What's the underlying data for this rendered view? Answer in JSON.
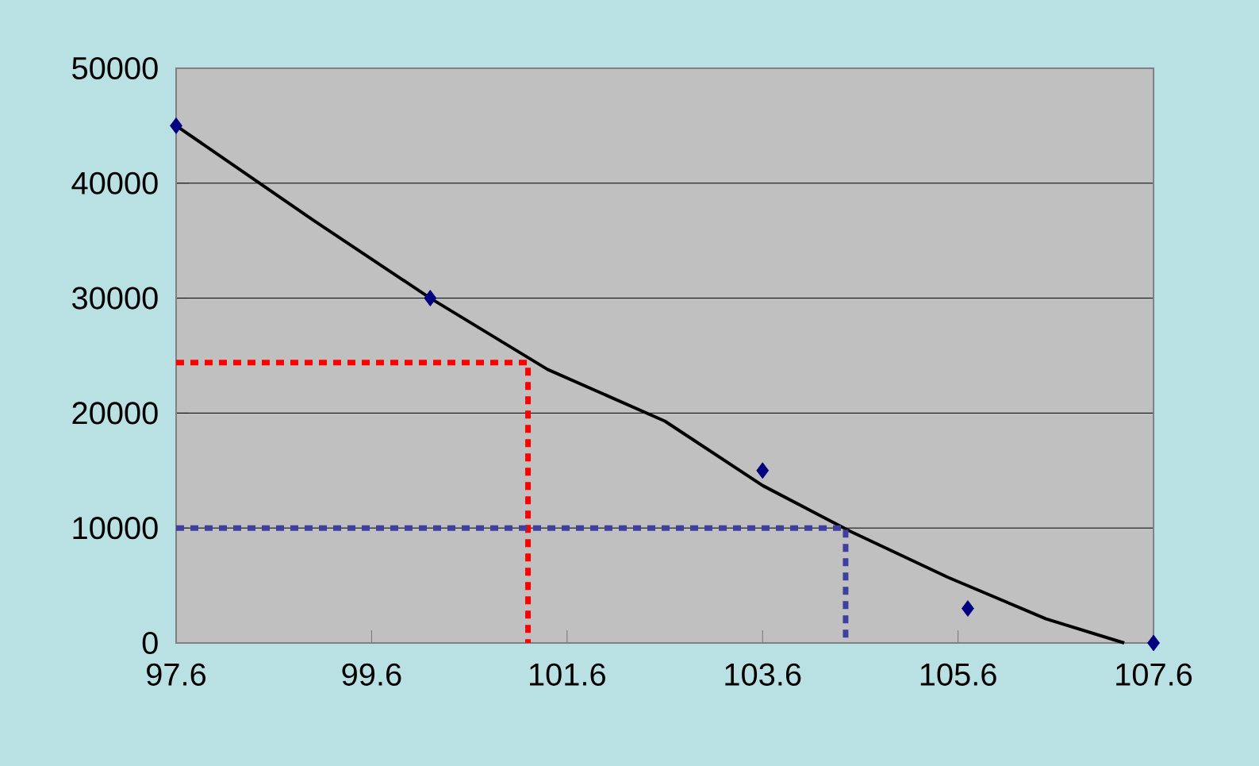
{
  "chart_data": {
    "type": "scatter",
    "xlim": [
      97.6,
      107.6
    ],
    "xticks": [
      97.6,
      99.6,
      101.6,
      103.6,
      105.6,
      107.6
    ],
    "ylim": [
      0,
      50000
    ],
    "yticks": [
      0,
      10000,
      20000,
      30000,
      40000,
      50000
    ],
    "grid": "y",
    "series": [
      {
        "type": "line",
        "color": "#000000",
        "line_style": "solid",
        "marker": "none",
        "x": [
          97.6,
          99.0,
          100.2,
          101.4,
          102.6,
          103.6,
          104.5,
          105.5,
          106.5,
          107.3
        ],
        "values": [
          45000,
          36800,
          30000,
          23800,
          19300,
          13700,
          9700,
          5700,
          2100,
          0
        ]
      },
      {
        "type": "scatter",
        "color": "#000080",
        "marker": "diamond",
        "x": [
          97.6,
          100.2,
          103.6,
          105.7,
          107.6
        ],
        "values": [
          45000,
          30000,
          15000,
          3000,
          0
        ]
      },
      {
        "type": "line",
        "color": "#ff0000",
        "line_style": "dotted",
        "marker": "none",
        "x": [
          97.6,
          101.2,
          101.2
        ],
        "values": [
          24400,
          24400,
          0
        ]
      },
      {
        "type": "line",
        "color": "#3f3f9f",
        "line_style": "dotted",
        "marker": "none",
        "x": [
          97.6,
          104.45,
          104.45
        ],
        "values": [
          10000,
          10000,
          0
        ]
      }
    ]
  }
}
